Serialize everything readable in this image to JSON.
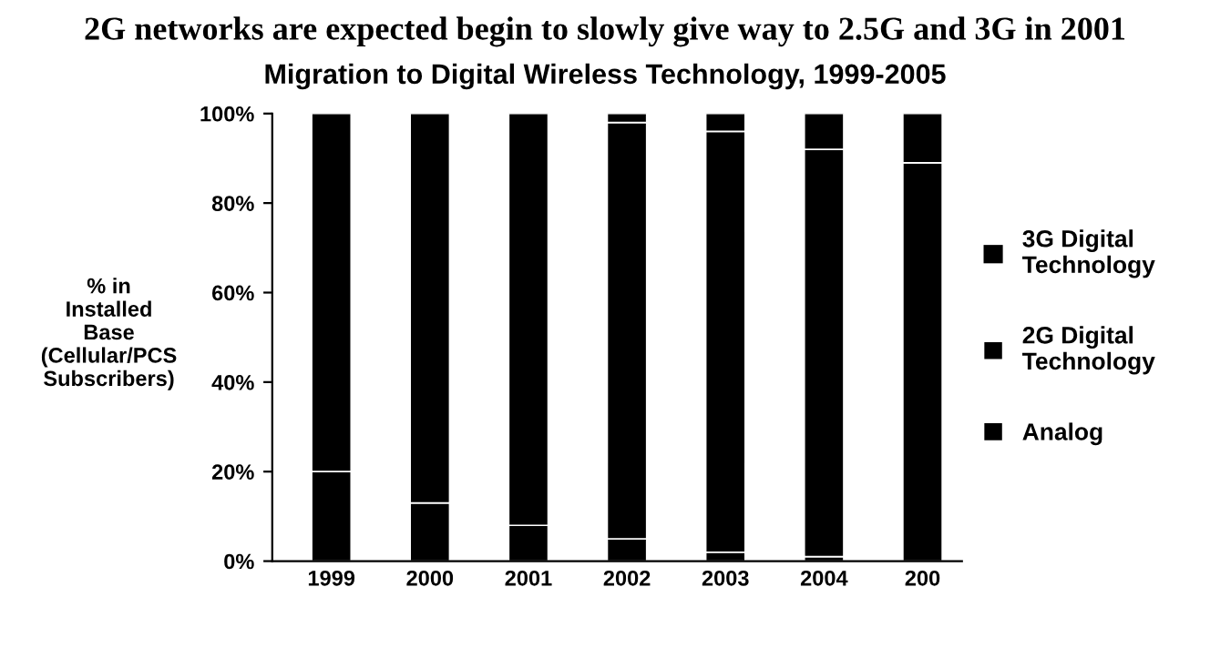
{
  "chart_data": {
    "type": "bar",
    "stacked": true,
    "title": "2G networks are expected begin to slowly give way to 2.5G and 3G in 2001",
    "subtitle": "Migration to Digital Wireless Technology, 1999-2005",
    "ylabel": "% in\nInstalled\nBase\n(Cellular/PCS\nSubscribers)",
    "categories": [
      "1999",
      "2000",
      "2001",
      "2002",
      "2003",
      "2004",
      "200"
    ],
    "series": [
      {
        "name": "Analog",
        "color": "#000000",
        "values": [
          20,
          13,
          8,
          5,
          2,
          1,
          0
        ]
      },
      {
        "name": "2G Digital\nTechnology",
        "color": "#000000",
        "values": [
          80,
          87,
          92,
          93,
          94,
          91,
          89
        ]
      },
      {
        "name": "3G Digital\nTechnology",
        "color": "#000000",
        "values": [
          0,
          0,
          0,
          2,
          4,
          8,
          11
        ]
      }
    ],
    "ylim": [
      0,
      100
    ],
    "yticks": [
      {
        "value": 0,
        "label": "0%"
      },
      {
        "value": 20,
        "label": "20%"
      },
      {
        "value": 40,
        "label": "40%"
      },
      {
        "value": 60,
        "label": "60%"
      },
      {
        "value": 80,
        "label": "80%"
      },
      {
        "value": 100,
        "label": "100%"
      }
    ],
    "legend": "right"
  }
}
